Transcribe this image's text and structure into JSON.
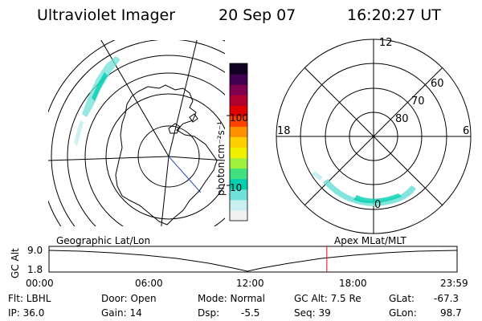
{
  "header": {
    "instrument": "Ultraviolet Imager",
    "date": "20 Sep 07",
    "time": "16:20:27 UT"
  },
  "colorbar": {
    "unit_label": "photon cm⁻²s⁻¹",
    "ticks": [
      {
        "label": "100",
        "value": 100
      },
      {
        "label": "10",
        "value": 10
      }
    ],
    "colors": [
      "#f0f0f0",
      "#c8f0f0",
      "#70e0d8",
      "#00d0b0",
      "#40e080",
      "#a0f040",
      "#f0f000",
      "#ffd000",
      "#ff9000",
      "#ff4000",
      "#e00000",
      "#b00030",
      "#800050",
      "#400050",
      "#100020"
    ]
  },
  "polar_plot": {
    "lat_labels": [
      "80",
      "70",
      "60"
    ],
    "mlt_labels": {
      "top": "12",
      "left": "18",
      "right": "6",
      "bottom": "0"
    }
  },
  "timeline": {
    "left_label": "Geographic Lat/Lon",
    "right_label": "Apex MLat/MLT",
    "axis_label": "GC Alt",
    "y_ticks": [
      "9.0",
      "1.8"
    ],
    "x_ticks": [
      "00:00",
      "06:00",
      "12:00",
      "18:00",
      "23:59"
    ],
    "marker_color": "#ff0000",
    "current_time_fraction": 0.6808
  },
  "footer": {
    "filter": "Flt: LBHL",
    "ip": "IP: 36.0",
    "door": "Door: Open",
    "gain": "Gain: 14",
    "mode": "Mode: Normal",
    "dsp_label": "Dsp:",
    "dsp_value": "-5.5",
    "gc_alt": "GC Alt: 7.5 Re",
    "seq": "Seq: 39",
    "glat_label": "GLat:",
    "glat_value": "-67.3",
    "glon_label": "GLon:",
    "glon_value": "98.7"
  }
}
